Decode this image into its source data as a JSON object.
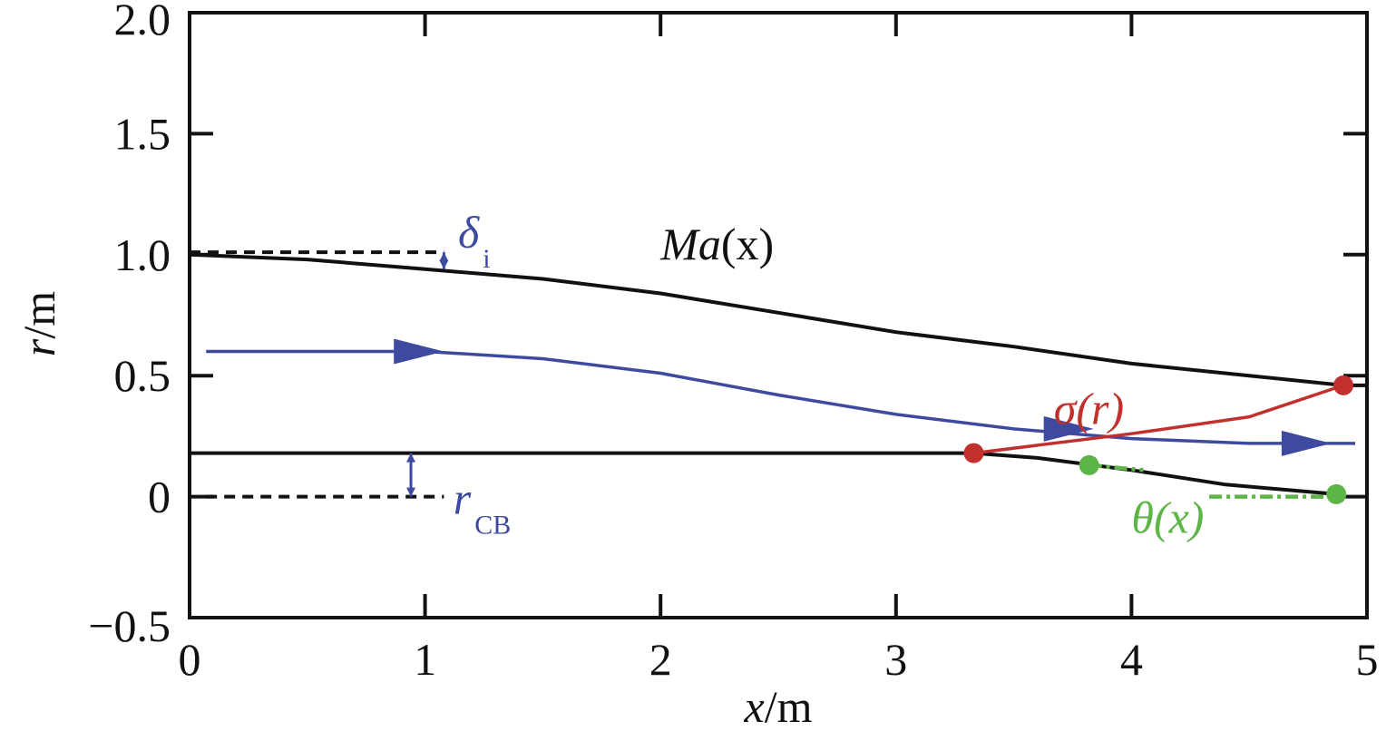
{
  "chart_data": {
    "type": "line",
    "xlabel": {
      "var": "x",
      "unit": "/m"
    },
    "ylabel": {
      "var": "r",
      "unit": "/m"
    },
    "xlim": [
      0,
      5
    ],
    "ylim": [
      -0.5,
      2.0
    ],
    "x_ticks": [
      {
        "value": 0,
        "label": "0"
      },
      {
        "value": 1,
        "label": "1"
      },
      {
        "value": 2,
        "label": "2"
      },
      {
        "value": 3,
        "label": "3"
      },
      {
        "value": 4,
        "label": "4"
      },
      {
        "value": 5,
        "label": "5"
      }
    ],
    "y_ticks": [
      {
        "value": 2.0,
        "label": "2.0"
      },
      {
        "value": 1.5,
        "label": "1.5"
      },
      {
        "value": 1.0,
        "label": "1.0"
      },
      {
        "value": 0.5,
        "label": "0.5"
      },
      {
        "value": 0,
        "label": "0"
      },
      {
        "value": -0.5,
        "label": "−0.5"
      }
    ],
    "grid": false,
    "series": [
      {
        "name": "Ma(x)",
        "color": "#111111",
        "style": "solid",
        "x": [
          0,
          0.5,
          1.0,
          1.5,
          2.0,
          2.5,
          3.0,
          3.5,
          4.0,
          4.5,
          4.9,
          5.0
        ],
        "y": [
          1.0,
          0.98,
          0.94,
          0.9,
          0.84,
          0.76,
          0.68,
          0.62,
          0.55,
          0.5,
          0.46,
          0.46
        ]
      },
      {
        "name": "streamline",
        "color": "#3d4aa0",
        "style": "solid",
        "x": [
          0.07,
          1.0,
          1.5,
          2.0,
          2.5,
          3.0,
          3.5,
          4.0,
          4.5,
          4.95
        ],
        "y": [
          0.6,
          0.6,
          0.57,
          0.51,
          0.42,
          0.34,
          0.28,
          0.24,
          0.22,
          0.22
        ]
      },
      {
        "name": "centerbody",
        "color": "#111111",
        "style": "solid",
        "x": [
          0,
          3.33,
          3.6,
          4.0,
          4.4,
          4.87
        ],
        "y": [
          0.18,
          0.18,
          0.16,
          0.11,
          0.05,
          0.01
        ]
      },
      {
        "name": "σ(r)",
        "color": "#c2302d",
        "style": "solid",
        "x": [
          3.33,
          4.0,
          4.5,
          4.9
        ],
        "y": [
          0.18,
          0.26,
          0.33,
          0.46
        ]
      },
      {
        "name": "θ(x)",
        "color": "#5db548",
        "style": "dashed",
        "segments": [
          {
            "x": [
              3.82,
              4.05
            ],
            "y": [
              0.13,
              0.11
            ]
          },
          {
            "x": [
              4.33,
              4.85
            ],
            "y": [
              0.0,
              0.0
            ]
          }
        ]
      },
      {
        "name": "inlet-lip-reference",
        "color": "#111111",
        "style": "dashed",
        "x": [
          0,
          1.08
        ],
        "y": [
          1.01,
          1.01
        ]
      },
      {
        "name": "centerbody-reference",
        "color": "#111111",
        "style": "dashed",
        "x": [
          0.07,
          1.08
        ],
        "y": [
          0.0,
          0.0
        ]
      }
    ],
    "markers": [
      {
        "name": "sigma-start",
        "x": 3.33,
        "y": 0.18,
        "color": "#c2302d"
      },
      {
        "name": "sigma-end",
        "x": 4.9,
        "y": 0.46,
        "color": "#c2302d"
      },
      {
        "name": "theta-start",
        "x": 3.82,
        "y": 0.13,
        "color": "#5db548"
      },
      {
        "name": "theta-end",
        "x": 4.87,
        "y": 0.01,
        "color": "#5db548"
      }
    ],
    "arrows": [
      {
        "name": "flow-arrow-1",
        "x": 1.06,
        "y": 0.6,
        "color": "#3d4aa0"
      },
      {
        "name": "flow-arrow-2",
        "x": 3.82,
        "y": 0.28,
        "color": "#3d4aa0"
      },
      {
        "name": "flow-arrow-3",
        "x": 4.83,
        "y": 0.22,
        "color": "#3d4aa0"
      }
    ],
    "dimension_markers": [
      {
        "name": "delta-i",
        "x": 1.08,
        "y_from": 1.01,
        "y_to": 0.94,
        "color": "#3d4aa0"
      },
      {
        "name": "r-cb",
        "x": 0.94,
        "y_from": 0.0,
        "y_to": 0.18,
        "color": "#3d4aa0"
      }
    ],
    "annotations": [
      {
        "name": "Ma",
        "main": "Ma",
        "paren": "(x)",
        "color": "#111111",
        "x": 2.0,
        "y": 0.98
      },
      {
        "name": "delta",
        "main": "δ",
        "sub": "i",
        "color": "#3d4aa0",
        "x": 1.14,
        "y": 1.03
      },
      {
        "name": "r-cb",
        "main": "r",
        "sub": "CB",
        "color": "#3d4aa0",
        "x": 1.12,
        "y": -0.07
      },
      {
        "name": "sigma",
        "main": "σ(r)",
        "color": "#c2302d",
        "x": 3.67,
        "y": 0.3
      },
      {
        "name": "theta",
        "main": "θ(x)",
        "color": "#5db548",
        "x": 4.0,
        "y": -0.15
      }
    ]
  }
}
